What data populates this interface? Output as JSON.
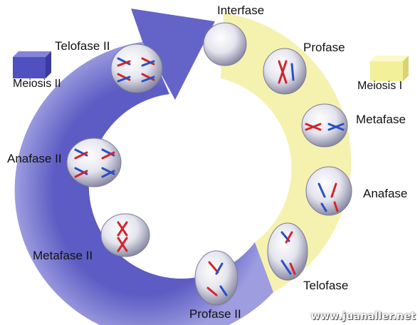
{
  "title": "Interfase",
  "legend": [
    {
      "id": "meiosis2",
      "label": "Meiosis II",
      "color": "#6a6ad0"
    },
    {
      "id": "meiosis1",
      "label": "Meiosis I",
      "color": "#f1ef92"
    }
  ],
  "phases_meiosis1": [
    "Profase",
    "Metafase",
    "Anafase",
    "Telofase"
  ],
  "phases_meiosis2": [
    "Profase II",
    "Metafase II",
    "Anafase II",
    "Telofase II"
  ],
  "credit": "www.juanaller.net",
  "colors": {
    "ring_purple": "#7b7bcf",
    "ring_yellow": "#f6f3b6",
    "chromosome_red": "#d4242c",
    "chromosome_blue": "#2a4fc4"
  },
  "icons": [
    "cycle-arrow-icon",
    "cell-icon"
  ]
}
